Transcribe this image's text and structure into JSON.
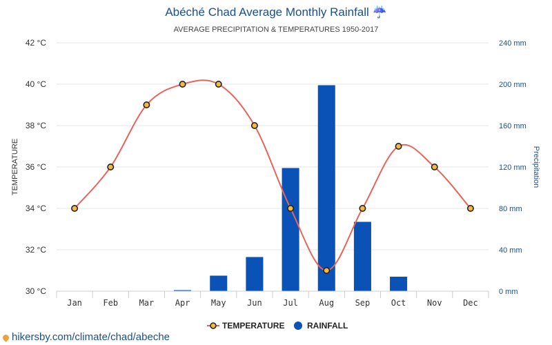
{
  "chart_data": {
    "type": "bar+line",
    "title": "Abéché Chad Average Monthly Rainfall ☔",
    "subtitle": "AVERAGE PRECIPITATION & TEMPERATURES 1950-2017",
    "categories": [
      "Jan",
      "Feb",
      "Mar",
      "Apr",
      "May",
      "Jun",
      "Jul",
      "Aug",
      "Sep",
      "Oct",
      "Nov",
      "Dec"
    ],
    "series": [
      {
        "name": "TEMPERATURE",
        "type": "line",
        "axis": "left",
        "unit": "°C",
        "color": "#e8645a",
        "marker_fill": "#f5b841",
        "values": [
          34,
          36,
          39,
          40,
          40,
          38,
          34,
          31,
          34,
          37,
          36,
          34
        ]
      },
      {
        "name": "RAINFALL",
        "type": "bar",
        "axis": "right",
        "unit": "mm",
        "color": "#0a52b5",
        "values": [
          0,
          0,
          0,
          1,
          15,
          33,
          119,
          199,
          67,
          14,
          0,
          0
        ]
      }
    ],
    "y_left": {
      "label": "TEMPERATURE",
      "range": [
        30,
        42
      ],
      "ticks": [
        "30 °C",
        "32 °C",
        "34 °C",
        "36 °C",
        "38 °C",
        "40 °C",
        "42 °C"
      ]
    },
    "y_right": {
      "label": "Precipitation",
      "range": [
        0,
        240
      ],
      "ticks": [
        "0 mm",
        "40 mm",
        "80 mm",
        "120 mm",
        "160 mm",
        "200 mm",
        "240 mm"
      ]
    },
    "grid": true,
    "legend_position": "bottom-center"
  },
  "source_text": "hikersby.com/climate/chad/abeche"
}
